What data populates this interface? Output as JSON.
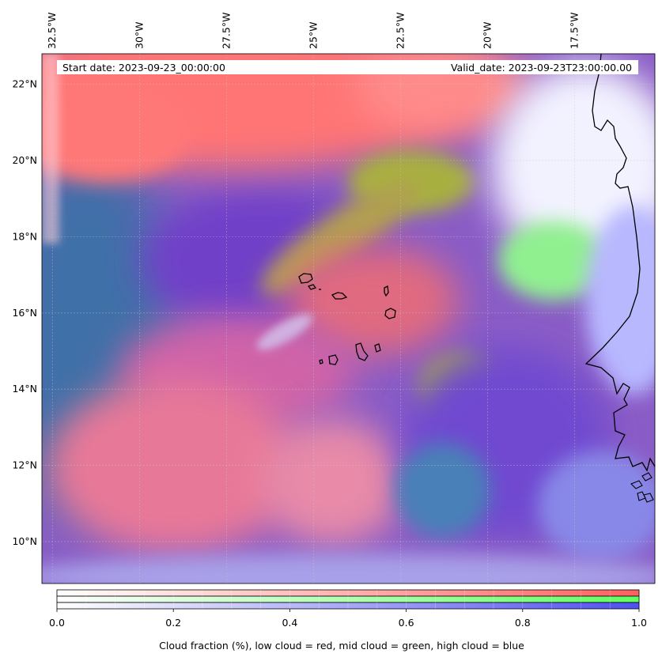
{
  "header": {
    "start_date": "Start date: 2023-09-23_00:00:00",
    "valid_date": "Valid_date: 2023-09-23T23:00:00.00"
  },
  "map": {
    "lon_range": [
      -32.8,
      -15.2
    ],
    "lat_range": [
      8.9,
      22.8
    ],
    "lon_ticks": [
      {
        "value": -32.5,
        "label": "32.5°W"
      },
      {
        "value": -30,
        "label": "30°W"
      },
      {
        "value": -27.5,
        "label": "27.5°W"
      },
      {
        "value": -25,
        "label": "25°W"
      },
      {
        "value": -22.5,
        "label": "22.5°W"
      },
      {
        "value": -20,
        "label": "20°W"
      },
      {
        "value": -17.5,
        "label": "17.5°W"
      }
    ],
    "lat_ticks": [
      {
        "value": 22,
        "label": "22°N"
      },
      {
        "value": 20,
        "label": "20°N"
      },
      {
        "value": 18,
        "label": "18°N"
      },
      {
        "value": 16,
        "label": "16°N"
      },
      {
        "value": 14,
        "label": "14°N"
      },
      {
        "value": 12,
        "label": "12°N"
      },
      {
        "value": 10,
        "label": "10°N"
      }
    ],
    "colors": {
      "low_cloud": "#ff7070",
      "mid_cloud": "#70ff70",
      "high_cloud": "#5040e0",
      "ocean": "#4f72a8",
      "coastline": "#000000"
    }
  },
  "colorbar": {
    "range": [
      0,
      1
    ],
    "ticks": [
      {
        "value": 0,
        "label": "0.0"
      },
      {
        "value": 0.2,
        "label": "0.2"
      },
      {
        "value": 0.4,
        "label": "0.4"
      },
      {
        "value": 0.6,
        "label": "0.6"
      },
      {
        "value": 0.8,
        "label": "0.8"
      },
      {
        "value": 1.0,
        "label": "1.0"
      }
    ],
    "caption": "Cloud fraction (%), low cloud = red, mid cloud = green, high cloud = blue",
    "bands": [
      {
        "color": "#ff6060"
      },
      {
        "color": "#60ff60"
      },
      {
        "color": "#5050f0"
      }
    ]
  }
}
